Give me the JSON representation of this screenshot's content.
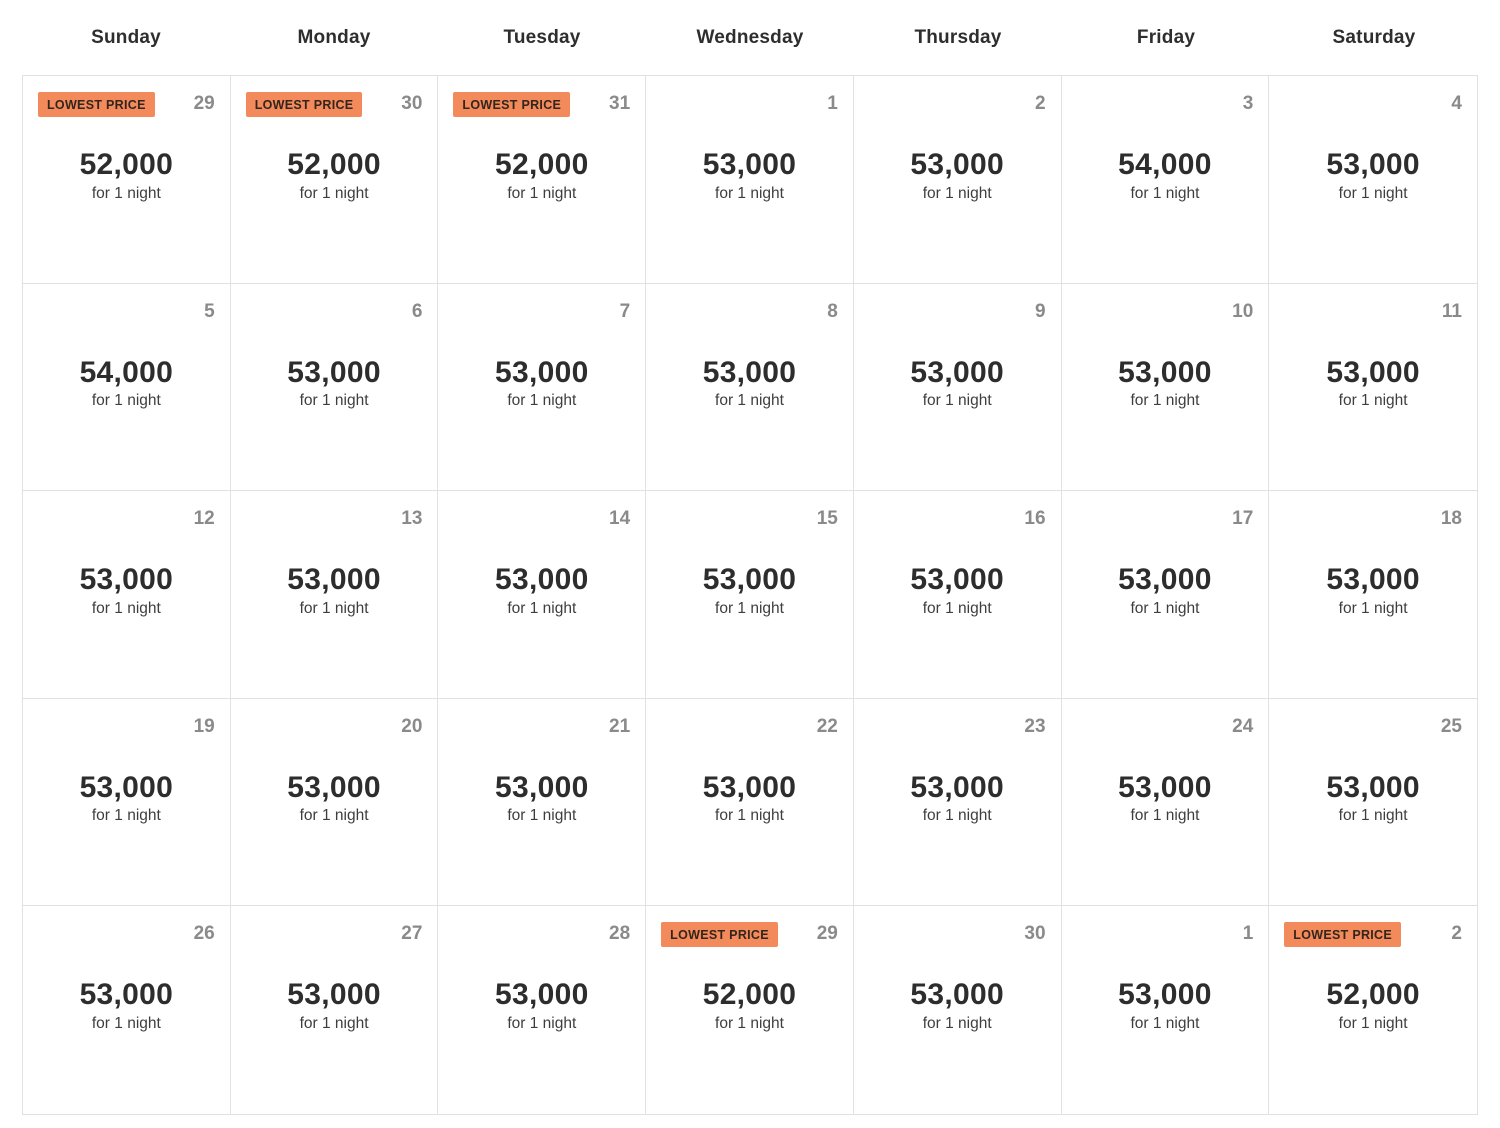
{
  "calendar": {
    "weekday_headers": [
      "Sunday",
      "Monday",
      "Tuesday",
      "Wednesday",
      "Thursday",
      "Friday",
      "Saturday"
    ],
    "badge_label": "LOWEST PRICE",
    "price_suffix": "for 1 night",
    "colors": {
      "badge_bg": "#F28A5C",
      "badge_text": "#33251C",
      "day_number": "#8A8A8A",
      "price": "#2D2D2D",
      "suffix": "#3E3E3E",
      "border": "#E1E1E1",
      "header": "#2E2E2E"
    },
    "weeks": [
      [
        {
          "day": "29",
          "price": "52,000",
          "lowest_price": true
        },
        {
          "day": "30",
          "price": "52,000",
          "lowest_price": true
        },
        {
          "day": "31",
          "price": "52,000",
          "lowest_price": true
        },
        {
          "day": "1",
          "price": "53,000",
          "lowest_price": false
        },
        {
          "day": "2",
          "price": "53,000",
          "lowest_price": false
        },
        {
          "day": "3",
          "price": "54,000",
          "lowest_price": false
        },
        {
          "day": "4",
          "price": "53,000",
          "lowest_price": false
        }
      ],
      [
        {
          "day": "5",
          "price": "54,000",
          "lowest_price": false
        },
        {
          "day": "6",
          "price": "53,000",
          "lowest_price": false
        },
        {
          "day": "7",
          "price": "53,000",
          "lowest_price": false
        },
        {
          "day": "8",
          "price": "53,000",
          "lowest_price": false
        },
        {
          "day": "9",
          "price": "53,000",
          "lowest_price": false
        },
        {
          "day": "10",
          "price": "53,000",
          "lowest_price": false
        },
        {
          "day": "11",
          "price": "53,000",
          "lowest_price": false
        }
      ],
      [
        {
          "day": "12",
          "price": "53,000",
          "lowest_price": false
        },
        {
          "day": "13",
          "price": "53,000",
          "lowest_price": false
        },
        {
          "day": "14",
          "price": "53,000",
          "lowest_price": false
        },
        {
          "day": "15",
          "price": "53,000",
          "lowest_price": false
        },
        {
          "day": "16",
          "price": "53,000",
          "lowest_price": false
        },
        {
          "day": "17",
          "price": "53,000",
          "lowest_price": false
        },
        {
          "day": "18",
          "price": "53,000",
          "lowest_price": false
        }
      ],
      [
        {
          "day": "19",
          "price": "53,000",
          "lowest_price": false
        },
        {
          "day": "20",
          "price": "53,000",
          "lowest_price": false
        },
        {
          "day": "21",
          "price": "53,000",
          "lowest_price": false
        },
        {
          "day": "22",
          "price": "53,000",
          "lowest_price": false
        },
        {
          "day": "23",
          "price": "53,000",
          "lowest_price": false
        },
        {
          "day": "24",
          "price": "53,000",
          "lowest_price": false
        },
        {
          "day": "25",
          "price": "53,000",
          "lowest_price": false
        }
      ],
      [
        {
          "day": "26",
          "price": "53,000",
          "lowest_price": false
        },
        {
          "day": "27",
          "price": "53,000",
          "lowest_price": false
        },
        {
          "day": "28",
          "price": "53,000",
          "lowest_price": false
        },
        {
          "day": "29",
          "price": "52,000",
          "lowest_price": true
        },
        {
          "day": "30",
          "price": "53,000",
          "lowest_price": false
        },
        {
          "day": "1",
          "price": "53,000",
          "lowest_price": false
        },
        {
          "day": "2",
          "price": "52,000",
          "lowest_price": true
        }
      ]
    ]
  }
}
